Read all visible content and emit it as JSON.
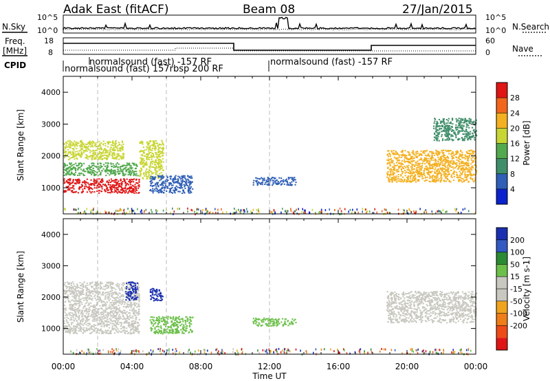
{
  "header": {
    "station": "Adak East (fitACF)",
    "beam": "Beam 08",
    "date": "27/Jan/2015"
  },
  "panel_labels": {
    "nsky": "N.Sky",
    "nsearch": "N.Search",
    "freq_line1": "Freq.",
    "freq_line2": "[MHz]",
    "nave": "Nave",
    "cpid": "CPID"
  },
  "noise_panel": {
    "left_ticks": [
      "10^5",
      "10^0"
    ],
    "right_ticks": [
      "10^5",
      "10^0"
    ]
  },
  "freq_panel": {
    "left_ticks": [
      "18",
      "8"
    ],
    "right_ticks": [
      "60",
      "0"
    ]
  },
  "cpid_labels": [
    "normalsound (fast) -157 RF",
    "normalsound (fast) 157rbsp 200 RF",
    "normalsound (fast) -157 RF"
  ],
  "colors": {
    "power_scale": [
      "#0b22cc",
      "#2f5fb6",
      "#3f8e6a",
      "#52a94e",
      "#c8d635",
      "#f4b021",
      "#f2661c",
      "#e01515"
    ],
    "velocity_scale": [
      "#1a2fb0",
      "#3359c2",
      "#2c8a33",
      "#6cc04a",
      "#c8c8c0",
      "#c8c8c0",
      "#f0a41e",
      "#ef7d18",
      "#ee4b18",
      "#e01515"
    ]
  },
  "chart_data": [
    {
      "type": "heatmap",
      "quantity": "Power",
      "ylabel": "Slant Range [km]",
      "xlabel": "Time UT",
      "x_ticks": [
        "00:00",
        "04:00",
        "08:00",
        "12:00",
        "16:00",
        "20:00",
        "00:00"
      ],
      "y_ticks": [
        "1000",
        "2000",
        "3000",
        "4000"
      ],
      "colorbar_label": "Power [dB]",
      "colorbar_ticks": [
        "4",
        "8",
        "12",
        "16",
        "20",
        "24",
        "28"
      ],
      "x_range_hours": [
        0,
        24
      ],
      "y_range_km": [
        180,
        4500
      ],
      "features": [
        {
          "t": [
            0.0,
            4.4
          ],
          "range_km": [
            850,
            1300
          ],
          "value_db": 28
        },
        {
          "t": [
            0.0,
            4.3
          ],
          "range_km": [
            1400,
            1800
          ],
          "value_db": 14
        },
        {
          "t": [
            0.0,
            3.5
          ],
          "range_km": [
            1900,
            2500
          ],
          "value_db": 16
        },
        {
          "t": [
            4.4,
            5.8
          ],
          "range_km": [
            1300,
            2500
          ],
          "value_db": 18
        },
        {
          "t": [
            5.0,
            7.5
          ],
          "range_km": [
            850,
            1400
          ],
          "value_db": 6
        },
        {
          "t": [
            11.0,
            13.5
          ],
          "range_km": [
            1100,
            1350
          ],
          "value_db": 5
        },
        {
          "t": [
            18.8,
            24.0
          ],
          "range_km": [
            1200,
            2200
          ],
          "value_db": 20
        },
        {
          "t": [
            21.5,
            24.0
          ],
          "range_km": [
            2500,
            3200
          ],
          "value_db": 8
        }
      ]
    },
    {
      "type": "heatmap",
      "quantity": "Velocity",
      "ylabel": "Slant Range [km]",
      "xlabel": "Time UT",
      "x_ticks": [
        "00:00",
        "04:00",
        "08:00",
        "12:00",
        "16:00",
        "20:00",
        "00:00"
      ],
      "y_ticks": [
        "1000",
        "2000",
        "3000",
        "4000"
      ],
      "colorbar_label": "Velocity [m s-1]",
      "colorbar_ticks": [
        "200",
        "100",
        "50",
        "15",
        "-15",
        "-50",
        "-100",
        "-200"
      ],
      "x_range_hours": [
        0,
        24
      ],
      "y_range_km": [
        180,
        4500
      ],
      "features": [
        {
          "t": [
            0.0,
            4.4
          ],
          "range_km": [
            850,
            2500
          ],
          "value_ms": 0
        },
        {
          "t": [
            3.6,
            4.3
          ],
          "range_km": [
            1900,
            2500
          ],
          "value_ms": 220
        },
        {
          "t": [
            5.0,
            5.8
          ],
          "range_km": [
            1900,
            2300
          ],
          "value_ms": 220
        },
        {
          "t": [
            5.0,
            7.5
          ],
          "range_km": [
            850,
            1400
          ],
          "value_ms": 60
        },
        {
          "t": [
            11.0,
            13.5
          ],
          "range_km": [
            1100,
            1350
          ],
          "value_ms": 60
        },
        {
          "t": [
            18.8,
            24.0
          ],
          "range_km": [
            1200,
            2200
          ],
          "value_ms": 0
        }
      ]
    }
  ]
}
